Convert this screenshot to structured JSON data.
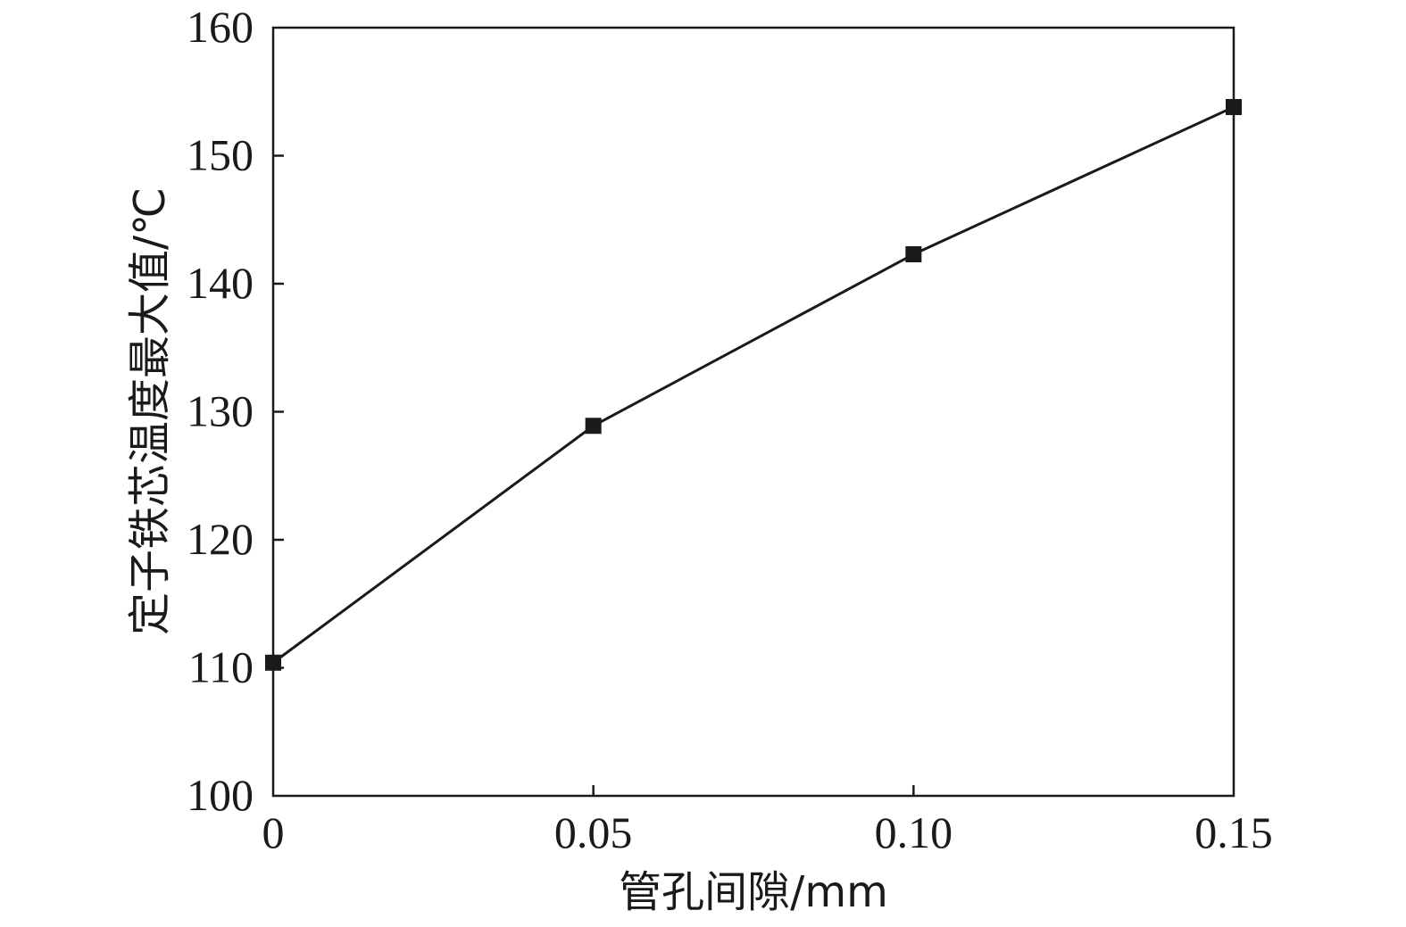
{
  "chart_data": {
    "type": "line",
    "x": [
      0,
      0.05,
      0.1,
      0.15
    ],
    "x_tick_labels": [
      "0",
      "0.05",
      "0.10",
      "0.15"
    ],
    "y_tick_labels": [
      "100",
      "110",
      "120",
      "130",
      "140",
      "150",
      "160"
    ],
    "y_ticks": [
      100,
      110,
      120,
      130,
      140,
      150,
      160
    ],
    "series": [
      {
        "values": [
          110.4,
          128.9,
          142.3,
          153.8
        ]
      }
    ],
    "xlabel": "管孔间隙/mm",
    "ylabel": "定子铁芯温度最大值/℃",
    "xlim": [
      0,
      0.15
    ],
    "ylim": [
      100,
      160
    ],
    "grid": false,
    "marker": "square",
    "line_color": "#1a1a1a"
  }
}
